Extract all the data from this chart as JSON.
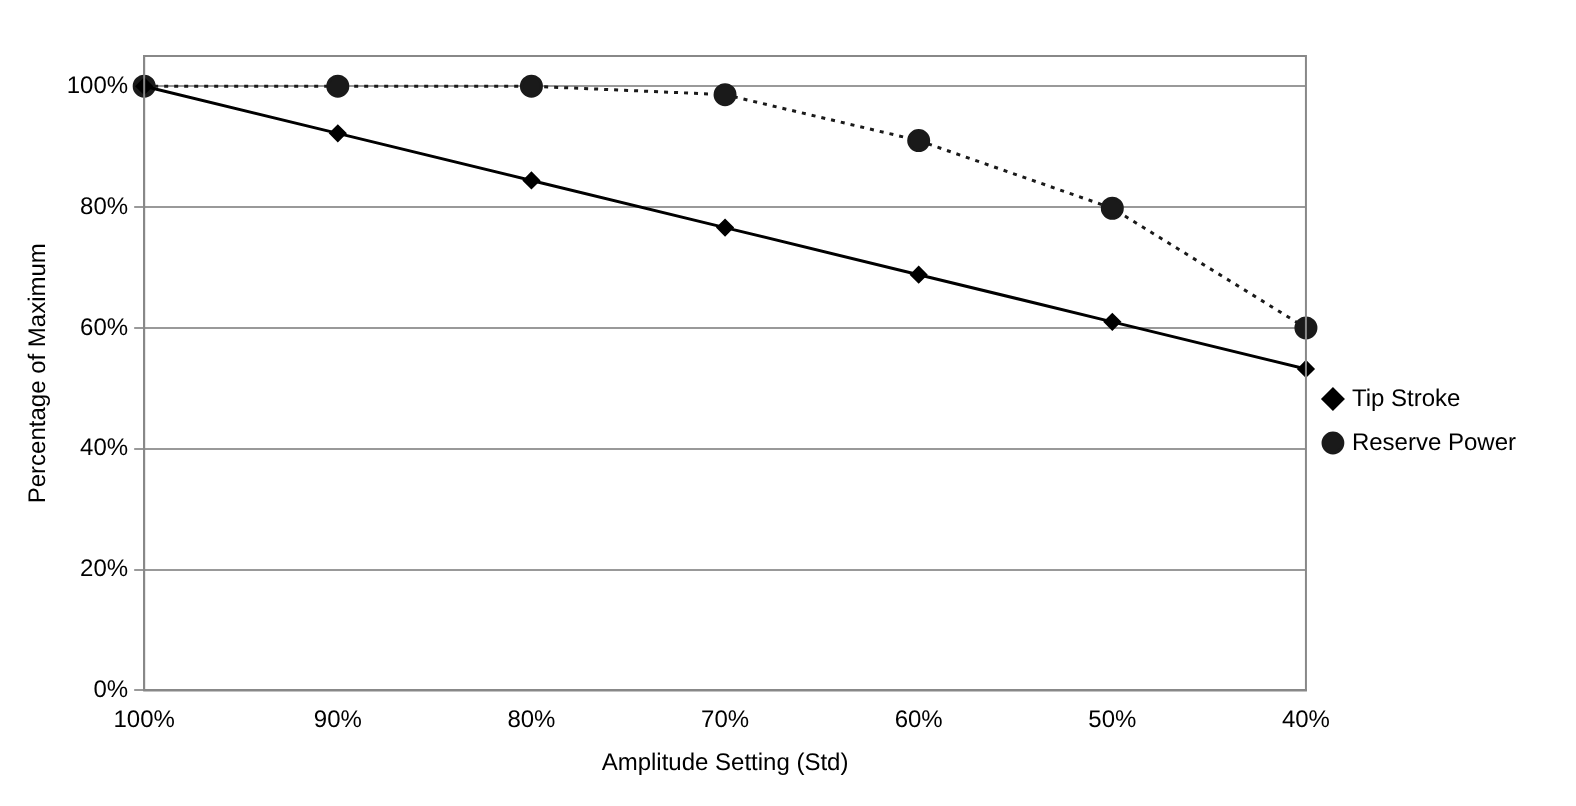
{
  "chart_data": {
    "type": "line",
    "xlabel": "Amplitude Setting (Std)",
    "ylabel": "Percentage of Maximum",
    "categories": [
      "100%",
      "90%",
      "80%",
      "70%",
      "60%",
      "50%",
      "40%"
    ],
    "series": [
      {
        "name": "Tip Stroke",
        "color": "#000000",
        "marker": "diamond",
        "line_style": "solid",
        "values": [
          100,
          92.2,
          84.4,
          76.6,
          68.8,
          61,
          53.2
        ]
      },
      {
        "name": "Reserve Power",
        "color": "#1a1a1a",
        "marker": "circle",
        "line_style": "dotted",
        "values": [
          100,
          100,
          100,
          98.6,
          91,
          79.8,
          60
        ]
      }
    ],
    "ylim": [
      0,
      105
    ],
    "yticks": [
      {
        "value": 0,
        "label": "0%"
      },
      {
        "value": 20,
        "label": "20%"
      },
      {
        "value": 40,
        "label": "40%"
      },
      {
        "value": 60,
        "label": "60%"
      },
      {
        "value": 80,
        "label": "80%"
      },
      {
        "value": 100,
        "label": "100%"
      }
    ],
    "grid": "y",
    "legend": "right"
  }
}
